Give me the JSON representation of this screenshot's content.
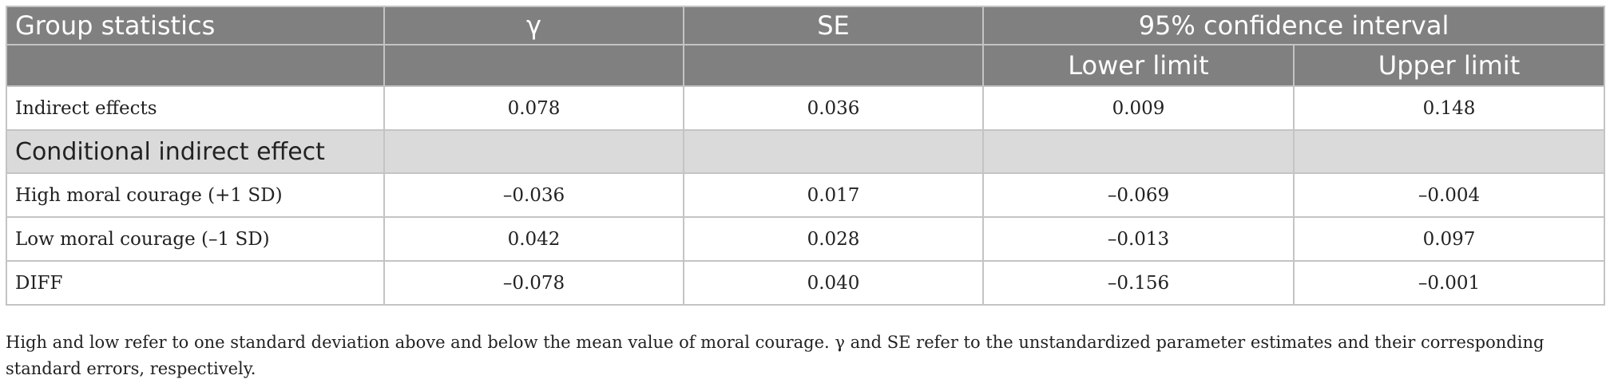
{
  "header": {
    "col0": "Group statistics",
    "col1": "γ",
    "col2": "SE",
    "ci": "95% confidence interval",
    "lower": "Lower limit",
    "upper": "Upper limit"
  },
  "rows": [
    {
      "label": "Indirect effects",
      "gamma": "0.078",
      "se": "0.036",
      "lower": "0.009",
      "upper": "0.148"
    }
  ],
  "section_label": "Conditional indirect effect",
  "conditional_rows": [
    {
      "label": "High moral courage (+1 SD)",
      "gamma": "–0.036",
      "se": "0.017",
      "lower": "–0.069",
      "upper": "–0.004"
    },
    {
      "label": "Low moral courage (–1 SD)",
      "gamma": "0.042",
      "se": "0.028",
      "lower": "–0.013",
      "upper": "0.097"
    },
    {
      "label": "DIFF",
      "gamma": "–0.078",
      "se": "0.040",
      "lower": "–0.156",
      "upper": "–0.001"
    }
  ],
  "note": "High and low refer to one standard deviation above and below the mean value of moral courage. γ and SE refer to the unstandardized parameter estimates and their corresponding standard errors, respectively."
}
